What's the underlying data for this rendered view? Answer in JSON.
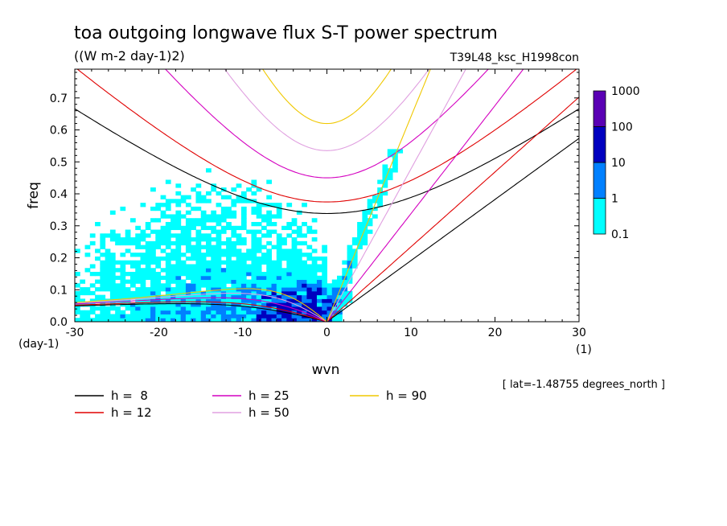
{
  "header": {
    "title": "toa outgoing longwave flux S-T power spectrum",
    "units": "((W m-2 day-1)2)",
    "experiment": "T39L48_ksc_H1998con",
    "location": "[ lat=-1.48755 degrees_north ]"
  },
  "colors": {
    "cell_0.1": "#00ffff",
    "cell_1": "#0080ff",
    "cell_10": "#0000c0",
    "cell_100": "#5a00b4",
    "h8": "#000000",
    "h12": "#e00000",
    "h25": "#d400c0",
    "h50": "#e0a0e0",
    "h90": "#f0c800"
  },
  "chart_data": {
    "type": "heatmap",
    "title": "toa outgoing longwave flux S-T power spectrum",
    "subtitle": "((W m-2 day-1)2)",
    "xlabel": "wvn",
    "ylabel": "freq",
    "x_unit": "(1)",
    "y_unit": "(day-1)",
    "xlim": [
      -30,
      30
    ],
    "ylim": [
      0,
      0.79
    ],
    "xticks": [
      "-30",
      "-20",
      "-10",
      "0",
      "10",
      "20",
      "30"
    ],
    "yticks": [
      "0.0",
      "0.1",
      "0.2",
      "0.3",
      "0.4",
      "0.5",
      "0.6",
      "0.7"
    ],
    "colorbar": {
      "levels": [
        "0.1",
        "1",
        "10",
        "100",
        "1000"
      ]
    },
    "series": [
      {
        "name": "h =  8"
      },
      {
        "name": "h = 12"
      },
      {
        "name": "h = 25"
      },
      {
        "name": "h = 50"
      },
      {
        "name": "h = 90"
      }
    ],
    "legend_position": "below"
  }
}
